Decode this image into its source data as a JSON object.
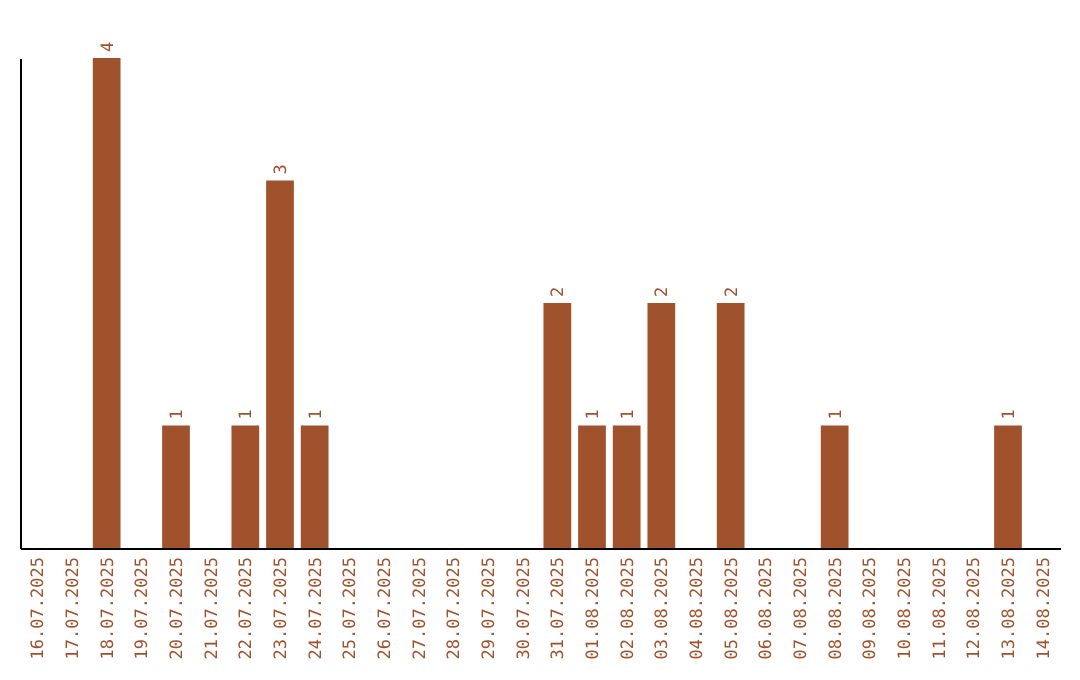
{
  "chart_data": {
    "type": "bar",
    "categories": [
      "16.07.2025",
      "17.07.2025",
      "18.07.2025",
      "19.07.2025",
      "20.07.2025",
      "21.07.2025",
      "22.07.2025",
      "23.07.2025",
      "24.07.2025",
      "25.07.2025",
      "26.07.2025",
      "27.07.2025",
      "28.07.2025",
      "29.07.2025",
      "30.07.2025",
      "31.07.2025",
      "01.08.2025",
      "02.08.2025",
      "03.08.2025",
      "04.08.2025",
      "05.08.2025",
      "06.08.2025",
      "07.08.2025",
      "08.08.2025",
      "09.08.2025",
      "10.08.2025",
      "11.08.2025",
      "12.08.2025",
      "13.08.2025",
      "14.08.2025"
    ],
    "values": [
      0,
      0,
      4,
      0,
      1,
      0,
      1,
      3,
      1,
      0,
      0,
      0,
      0,
      0,
      0,
      2,
      1,
      1,
      2,
      0,
      2,
      0,
      0,
      1,
      0,
      0,
      0,
      0,
      1,
      0
    ],
    "value_labels": [
      null,
      null,
      "4",
      null,
      "1",
      null,
      "1",
      "3",
      "1",
      null,
      null,
      null,
      null,
      null,
      null,
      "2",
      "1",
      "1",
      "2",
      null,
      "2",
      null,
      null,
      "1",
      null,
      null,
      null,
      null,
      "1",
      null
    ],
    "color": "#a0522d",
    "grid": false
  }
}
